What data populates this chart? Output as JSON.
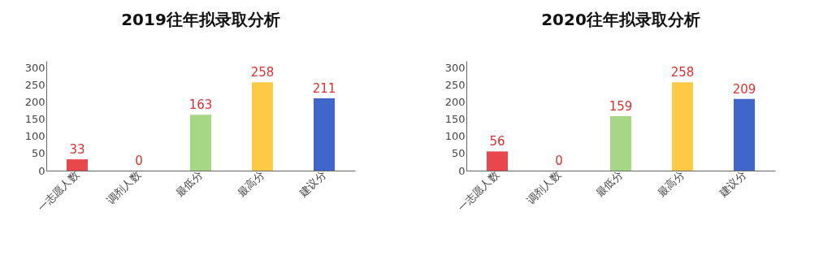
{
  "chart_data": [
    {
      "type": "bar",
      "title": "2019往年拟录取分析",
      "categories": [
        "一志愿人数",
        "调剂人数",
        "最低分",
        "最高分",
        "建议分"
      ],
      "values": [
        33,
        0,
        163,
        258,
        211
      ],
      "colors": [
        "#e8474c",
        "#e8474c",
        "#a6d785",
        "#ffc845",
        "#3f66c8"
      ],
      "ylim": [
        0,
        320
      ],
      "yticks": [
        0,
        50,
        100,
        150,
        200,
        250,
        300
      ],
      "data_labels": true,
      "grid": false
    },
    {
      "type": "bar",
      "title": "2020往年拟录取分析",
      "categories": [
        "一志愿人数",
        "调剂人数",
        "最低分",
        "最高分",
        "建议分"
      ],
      "values": [
        56,
        0,
        159,
        258,
        209
      ],
      "colors": [
        "#e8474c",
        "#e8474c",
        "#a6d785",
        "#ffc845",
        "#3f66c8"
      ],
      "ylim": [
        0,
        320
      ],
      "yticks": [
        0,
        50,
        100,
        150,
        200,
        250,
        300
      ],
      "data_labels": true,
      "grid": false
    }
  ]
}
